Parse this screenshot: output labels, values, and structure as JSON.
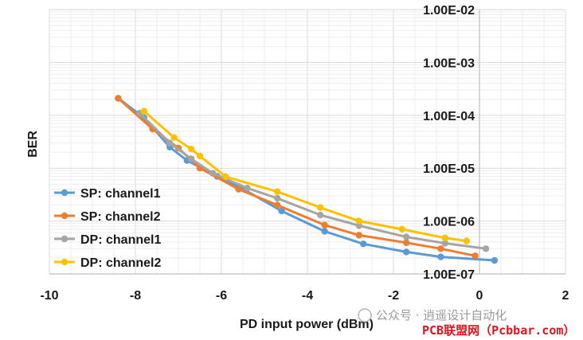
{
  "chart_data": {
    "type": "line",
    "title": "",
    "xlabel": "PD input power (dBm)",
    "ylabel": "BER",
    "xlim": [
      -10,
      2
    ],
    "ylim": [
      1e-07,
      0.01
    ],
    "y_scale": "log",
    "grid": true,
    "legend_position": "bottom-left",
    "x_ticks": [
      "-10",
      "-8",
      "-6",
      "-4",
      "-2",
      "0",
      "2"
    ],
    "y_ticks": [
      "1.00E-07",
      "1.00E-06",
      "1.00E-05",
      "1.00E-04",
      "1.00E-03",
      "1.00E-02"
    ],
    "series": [
      {
        "name": "SP: channel1",
        "color": "#5b9bd5",
        "x": [
          -8.4,
          -7.8,
          -7.2,
          -6.8,
          -6.1,
          -5.6,
          -4.6,
          -3.6,
          -2.7,
          -1.7,
          -0.9,
          0.35
        ],
        "y": [
          0.00021,
          9e-05,
          2.5e-05,
          1.4e-05,
          7e-06,
          4.5e-06,
          1.55e-06,
          6.4e-07,
          3.7e-07,
          2.6e-07,
          2.1e-07,
          1.8e-07
        ]
      },
      {
        "name": "SP: channel2",
        "color": "#ed7d31",
        "x": [
          -8.4,
          -7.6,
          -7.0,
          -6.5,
          -5.6,
          -4.7,
          -3.6,
          -2.8,
          -1.7,
          -0.9,
          -0.1
        ],
        "y": [
          0.00021,
          5.5e-05,
          2.4e-05,
          1e-05,
          4e-06,
          2e-06,
          8.4e-07,
          5.4e-07,
          3.9e-07,
          3e-07,
          2.2e-07
        ]
      },
      {
        "name": "DP: channel1",
        "color": "#a5a5a5",
        "x": [
          -7.9,
          -7.2,
          -6.7,
          -6.2,
          -5.4,
          -4.7,
          -3.7,
          -2.8,
          -1.7,
          -0.8,
          0.15
        ],
        "y": [
          0.00011,
          3e-05,
          1.5e-05,
          8e-06,
          4.2e-06,
          2.7e-06,
          1.3e-06,
          8.2e-07,
          5e-07,
          3.8e-07,
          3e-07
        ]
      },
      {
        "name": "DP: channel2",
        "color": "#ffc000",
        "x": [
          -7.8,
          -7.1,
          -6.7,
          -6.5,
          -5.9,
          -4.7,
          -3.7,
          -2.8,
          -1.8,
          -0.8,
          -0.3
        ],
        "y": [
          0.00012,
          3.8e-05,
          2.3e-05,
          1.7e-05,
          6.9e-06,
          3.6e-06,
          1.8e-06,
          1e-06,
          7e-07,
          4.8e-07,
          4.2e-07
        ]
      }
    ]
  },
  "watermark": {
    "account": "公众号 · 逍遥设计自动化",
    "site": "PCB联盟网（Pcbbar.com）"
  }
}
